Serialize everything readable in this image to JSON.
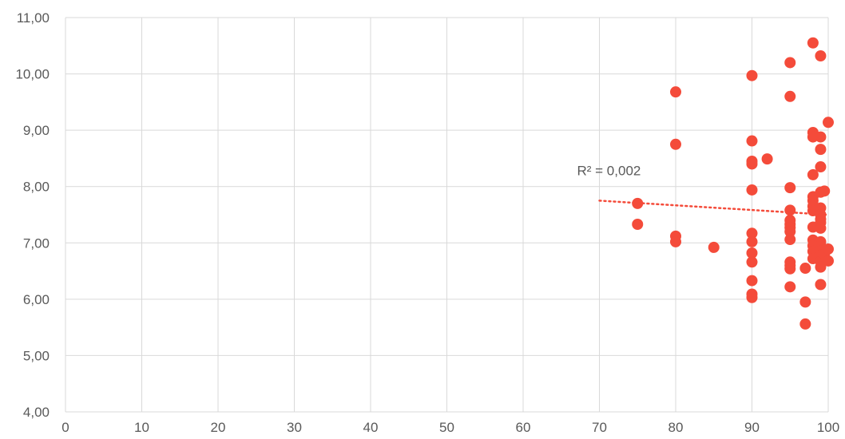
{
  "chart_data": {
    "type": "scatter",
    "title": "",
    "xlabel": "",
    "ylabel": "",
    "xlim": [
      0,
      100
    ],
    "ylim": [
      4,
      11
    ],
    "x_ticks": [
      "0",
      "10",
      "20",
      "30",
      "40",
      "50",
      "60",
      "70",
      "80",
      "90",
      "100"
    ],
    "y_ticks": [
      "4,00",
      "5,00",
      "6,00",
      "7,00",
      "8,00",
      "9,00",
      "10,00",
      "11,00"
    ],
    "grid": true,
    "legend": "none",
    "marker_color": "#f44b3a",
    "trendline": {
      "type": "linear",
      "x_start": 70,
      "y_start": 7.75,
      "x_end": 100,
      "y_end": 7.5,
      "color": "#f44b3a",
      "r2_label": "R² = 0,002"
    },
    "points": [
      {
        "x": 75,
        "y": 7.7
      },
      {
        "x": 75,
        "y": 7.33
      },
      {
        "x": 80,
        "y": 9.68
      },
      {
        "x": 80,
        "y": 8.75
      },
      {
        "x": 80,
        "y": 7.12
      },
      {
        "x": 80,
        "y": 7.02
      },
      {
        "x": 85,
        "y": 6.92
      },
      {
        "x": 90,
        "y": 9.97
      },
      {
        "x": 90,
        "y": 8.81
      },
      {
        "x": 90,
        "y": 8.45
      },
      {
        "x": 90,
        "y": 8.4
      },
      {
        "x": 90,
        "y": 7.94
      },
      {
        "x": 90,
        "y": 7.17
      },
      {
        "x": 90,
        "y": 7.02
      },
      {
        "x": 90,
        "y": 6.82
      },
      {
        "x": 90,
        "y": 6.66
      },
      {
        "x": 90,
        "y": 6.33
      },
      {
        "x": 90,
        "y": 6.09
      },
      {
        "x": 90,
        "y": 6.03
      },
      {
        "x": 92,
        "y": 8.49
      },
      {
        "x": 95,
        "y": 10.2
      },
      {
        "x": 95,
        "y": 9.6
      },
      {
        "x": 95,
        "y": 7.98
      },
      {
        "x": 95,
        "y": 7.58
      },
      {
        "x": 95,
        "y": 7.4
      },
      {
        "x": 95,
        "y": 7.33
      },
      {
        "x": 95,
        "y": 7.27
      },
      {
        "x": 95,
        "y": 7.2
      },
      {
        "x": 95,
        "y": 7.06
      },
      {
        "x": 95,
        "y": 6.66
      },
      {
        "x": 95,
        "y": 6.6
      },
      {
        "x": 95,
        "y": 6.54
      },
      {
        "x": 95,
        "y": 6.22
      },
      {
        "x": 97,
        "y": 6.55
      },
      {
        "x": 97,
        "y": 5.95
      },
      {
        "x": 97,
        "y": 5.56
      },
      {
        "x": 98,
        "y": 10.55
      },
      {
        "x": 98,
        "y": 8.96
      },
      {
        "x": 98,
        "y": 8.88
      },
      {
        "x": 98,
        "y": 8.21
      },
      {
        "x": 98,
        "y": 7.82
      },
      {
        "x": 98,
        "y": 7.75
      },
      {
        "x": 98,
        "y": 7.65
      },
      {
        "x": 98,
        "y": 7.57
      },
      {
        "x": 98,
        "y": 7.28
      },
      {
        "x": 98,
        "y": 7.05
      },
      {
        "x": 98,
        "y": 6.95
      },
      {
        "x": 98,
        "y": 6.85
      },
      {
        "x": 98,
        "y": 6.72
      },
      {
        "x": 99,
        "y": 10.32
      },
      {
        "x": 99,
        "y": 8.88
      },
      {
        "x": 99,
        "y": 8.66
      },
      {
        "x": 99,
        "y": 8.35
      },
      {
        "x": 99,
        "y": 7.9
      },
      {
        "x": 99,
        "y": 7.62
      },
      {
        "x": 99,
        "y": 7.5
      },
      {
        "x": 99,
        "y": 7.42
      },
      {
        "x": 99,
        "y": 7.36
      },
      {
        "x": 99,
        "y": 7.26
      },
      {
        "x": 99,
        "y": 7.02
      },
      {
        "x": 99,
        "y": 6.95
      },
      {
        "x": 99,
        "y": 6.86
      },
      {
        "x": 99,
        "y": 6.78
      },
      {
        "x": 99,
        "y": 6.67
      },
      {
        "x": 99,
        "y": 6.57
      },
      {
        "x": 99,
        "y": 6.26
      },
      {
        "x": 99.5,
        "y": 7.92
      },
      {
        "x": 99.5,
        "y": 6.8
      },
      {
        "x": 100,
        "y": 9.14
      },
      {
        "x": 100,
        "y": 6.89
      },
      {
        "x": 100,
        "y": 6.68
      }
    ]
  }
}
